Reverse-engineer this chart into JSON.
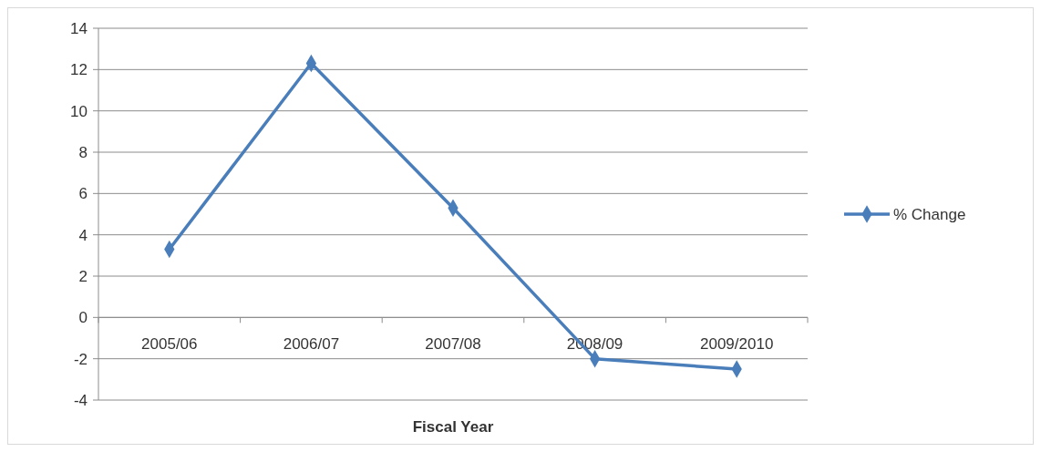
{
  "chart_data": {
    "type": "line",
    "xlabel": "Fiscal Year",
    "categories": [
      "2005/06",
      "2006/07",
      "2007/08",
      "2008/09",
      "2009/2010"
    ],
    "series": [
      {
        "name": "% Change",
        "color": "#4a7ebb",
        "values": [
          3.3,
          12.3,
          5.3,
          -2.0,
          -2.5
        ]
      }
    ],
    "ylim": [
      -4,
      14
    ],
    "yticks": [
      -4,
      -2,
      0,
      2,
      4,
      6,
      8,
      10,
      12,
      14
    ],
    "grid": "y",
    "legend": "right",
    "marker": "diamond",
    "line_style": "solid"
  }
}
